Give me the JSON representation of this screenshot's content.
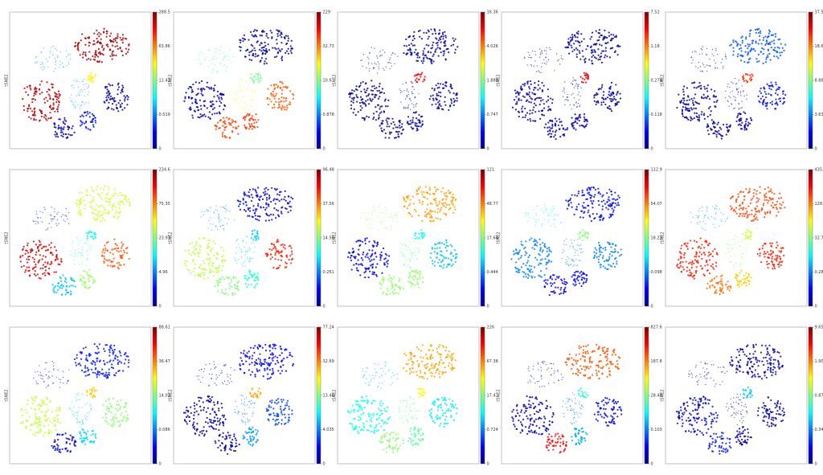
{
  "chart_data": [
    {
      "type": "scatter",
      "y_label": "tSNE2",
      "x": [
        65,
        30,
        22,
        38,
        50,
        75,
        58,
        55
      ],
      "y": [
        75,
        65,
        35,
        15,
        40,
        38,
        52,
        20
      ],
      "cticks": [
        0,
        0.519,
        11.42,
        63.86,
        288.5
      ],
      "values": [
        250,
        2,
        240,
        0.1,
        3,
        0.1,
        40,
        0.3
      ]
    },
    {
      "type": "scatter",
      "y_label": "tSNE2",
      "x": [
        65,
        30,
        22,
        38,
        50,
        75,
        58,
        55
      ],
      "y": [
        75,
        65,
        35,
        15,
        40,
        38,
        52,
        20
      ],
      "cticks": [
        0,
        0.878,
        10.6,
        32.73,
        229
      ],
      "values": [
        0.1,
        8,
        0.2,
        80,
        20,
        60,
        10,
        90
      ]
    },
    {
      "type": "scatter",
      "y_label": "tSNE2",
      "x": [
        65,
        30,
        22,
        38,
        50,
        75,
        58,
        55
      ],
      "y": [
        75,
        65,
        35,
        15,
        40,
        38,
        52,
        20
      ],
      "cticks": [
        0,
        0.747,
        1.888,
        4.026,
        16.36
      ],
      "values": [
        0.1,
        0.05,
        0.05,
        0.05,
        0.2,
        0.1,
        10,
        0.1
      ]
    },
    {
      "type": "scatter",
      "y_label": "tSNE2",
      "x": [
        65,
        30,
        22,
        38,
        50,
        75,
        58,
        55
      ],
      "y": [
        75,
        65,
        35,
        15,
        40,
        38,
        52,
        20
      ],
      "cticks": [
        0,
        0.118,
        0.274,
        1.18,
        7.52
      ],
      "values": [
        0.02,
        0.02,
        0.02,
        0.02,
        0.02,
        0.02,
        5,
        0.02
      ]
    },
    {
      "type": "scatter",
      "y_label": "tSNE2",
      "x": [
        65,
        30,
        22,
        38,
        50,
        75,
        58,
        55
      ],
      "y": [
        75,
        65,
        35,
        15,
        40,
        38,
        52,
        20
      ],
      "cticks": [
        0,
        3.638,
        8.869,
        18.62,
        37.56
      ],
      "values": [
        3,
        0.5,
        0.5,
        0.5,
        0.5,
        2,
        25,
        0.5
      ]
    },
    {
      "type": "scatter",
      "y_label": "tSNE2",
      "x": [
        65,
        30,
        22,
        38,
        50,
        75,
        58,
        55
      ],
      "y": [
        75,
        65,
        35,
        15,
        40,
        38,
        52,
        20
      ],
      "cticks": [
        0,
        4.96,
        23.97,
        75.35,
        234.6
      ],
      "values": [
        40,
        3,
        180,
        10,
        20,
        100,
        15,
        30
      ]
    },
    {
      "type": "scatter",
      "y_label": "tSNE2",
      "x": [
        65,
        30,
        22,
        38,
        50,
        75,
        58,
        55
      ],
      "y": [
        75,
        65,
        35,
        15,
        40,
        38,
        52,
        20
      ],
      "cticks": [
        0,
        0.261,
        14.56,
        37.56,
        96.48
      ],
      "values": [
        0.1,
        2,
        20,
        15,
        5,
        60,
        5,
        10
      ]
    },
    {
      "type": "scatter",
      "y_label": "tSNE2",
      "x": [
        65,
        30,
        22,
        38,
        50,
        75,
        58,
        55
      ],
      "y": [
        75,
        65,
        35,
        15,
        40,
        38,
        52,
        20
      ],
      "cticks": [
        0,
        0.444,
        17.64,
        48.77,
        121
      ],
      "values": [
        45,
        20,
        0.2,
        20,
        15,
        5,
        10,
        20
      ]
    },
    {
      "type": "scatter",
      "y_label": "tSNE2",
      "x": [
        65,
        30,
        22,
        38,
        50,
        75,
        58,
        55
      ],
      "y": [
        75,
        65,
        35,
        15,
        40,
        38,
        52,
        20
      ],
      "cticks": [
        0,
        0.098,
        18.22,
        54.07,
        112.9
      ],
      "values": [
        0.05,
        10,
        0.3,
        0.05,
        0.2,
        0.1,
        20,
        0.05
      ]
    },
    {
      "type": "scatter",
      "y_label": "tSNE2",
      "x": [
        65,
        30,
        22,
        38,
        50,
        75,
        58,
        55
      ],
      "y": [
        75,
        65,
        35,
        15,
        40,
        38,
        52,
        20
      ],
      "cticks": [
        0,
        0.282,
        32.79,
        128.7,
        435.1
      ],
      "values": [
        200,
        5,
        250,
        150,
        40,
        250,
        60,
        100
      ]
    },
    {
      "type": "scatter",
      "y_label": "tSNE2",
      "x": [
        65,
        30,
        22,
        38,
        50,
        75,
        58,
        55
      ],
      "y": [
        75,
        65,
        35,
        15,
        40,
        38,
        52,
        20
      ],
      "cticks": [
        0,
        0.086,
        14.02,
        36.47,
        88.61
      ],
      "values": [
        0.05,
        0.05,
        20,
        0.03,
        5,
        15,
        30,
        5
      ]
    },
    {
      "type": "scatter",
      "y_label": "tSNE2",
      "x": [
        65,
        30,
        22,
        38,
        50,
        75,
        58,
        55
      ],
      "y": [
        75,
        65,
        35,
        15,
        40,
        38,
        52,
        20
      ],
      "cticks": [
        0,
        4.035,
        13.46,
        32.69,
        77.24
      ],
      "values": [
        2,
        1,
        0.5,
        0.5,
        4,
        3,
        30,
        5
      ]
    },
    {
      "type": "scatter",
      "y_label": "tSNE2",
      "x": [
        65,
        30,
        22,
        38,
        50,
        75,
        58,
        55
      ],
      "y": [
        75,
        65,
        35,
        15,
        40,
        38,
        52,
        20
      ],
      "cticks": [
        0,
        0.724,
        17.4,
        67.38,
        226
      ],
      "values": [
        60,
        5,
        10,
        20,
        15,
        8,
        40,
        15
      ]
    },
    {
      "type": "scatter",
      "y_label": "tSNE2",
      "x": [
        65,
        30,
        22,
        38,
        50,
        75,
        58,
        55
      ],
      "y": [
        75,
        65,
        35,
        15,
        40,
        38,
        52,
        20
      ],
      "cticks": [
        0,
        0.103,
        28.48,
        187.8,
        827.6
      ],
      "values": [
        300,
        0.05,
        0.02,
        500,
        0.1,
        0.05,
        20,
        5
      ]
    },
    {
      "type": "scatter",
      "y_label": "tSNE2",
      "x": [
        65,
        30,
        22,
        38,
        50,
        75,
        58,
        55
      ],
      "y": [
        75,
        65,
        35,
        15,
        40,
        38,
        52,
        20
      ],
      "cticks": [
        0,
        0.343,
        0.871,
        1.902,
        9.653
      ],
      "values": [
        0.05,
        0.05,
        0.1,
        0.2,
        0.05,
        0.05,
        0.5,
        0.05
      ]
    }
  ]
}
